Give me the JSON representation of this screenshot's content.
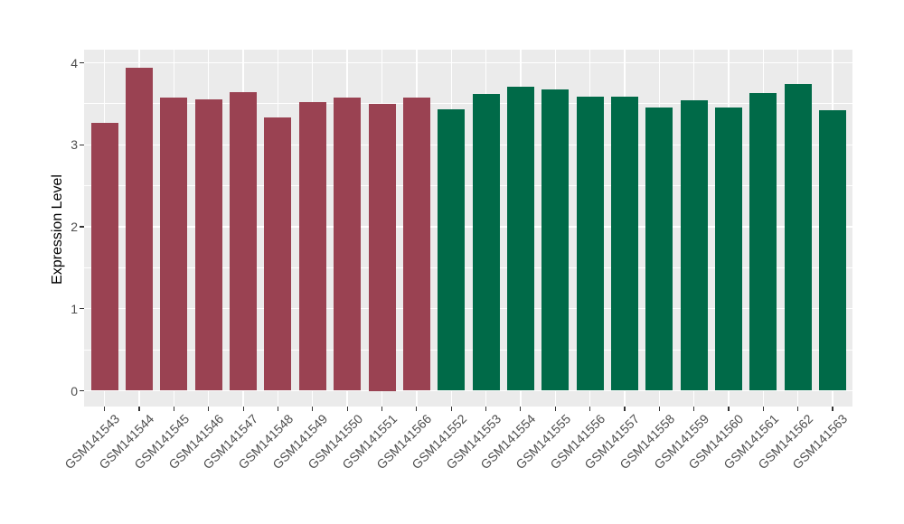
{
  "chart_data": {
    "type": "bar",
    "title": "",
    "xlabel": "",
    "ylabel": "Expression Level",
    "ylim": [
      0,
      4.16
    ],
    "yticks": [
      0,
      1,
      2,
      3,
      4
    ],
    "yticks_minor": [
      0.5,
      1.5,
      2.5,
      3.5
    ],
    "grid": true,
    "legend": false,
    "categories": [
      "GSM141543",
      "GSM141544",
      "GSM141545",
      "GSM141546",
      "GSM141547",
      "GSM141548",
      "GSM141549",
      "GSM141550",
      "GSM141551",
      "GSM141566",
      "GSM141552",
      "GSM141553",
      "GSM141554",
      "GSM141555",
      "GSM141556",
      "GSM141557",
      "GSM141558",
      "GSM141559",
      "GSM141560",
      "GSM141561",
      "GSM141562",
      "GSM141563"
    ],
    "values": [
      3.27,
      3.94,
      3.58,
      3.55,
      3.64,
      3.33,
      3.52,
      3.58,
      3.5,
      3.58,
      3.43,
      3.62,
      3.71,
      3.68,
      3.59,
      3.59,
      3.45,
      3.54,
      3.45,
      3.63,
      3.74,
      3.42
    ],
    "bar_groups": [
      "group1",
      "group1",
      "group1",
      "group1",
      "group1",
      "group1",
      "group1",
      "group1",
      "group1",
      "group1",
      "group2",
      "group2",
      "group2",
      "group2",
      "group2",
      "group2",
      "group2",
      "group2",
      "group2",
      "group2",
      "group2",
      "group2"
    ],
    "group_colors": {
      "group1": "#9A4252",
      "group2": "#006A48"
    },
    "colors": {
      "panel_background": "#EBEBEB",
      "gridline": "#FFFFFF",
      "tick_mark": "#333333",
      "tick_label": "#4D4D4D",
      "axis_title": "#000000",
      "figure_background": "#FFFFFF"
    }
  }
}
